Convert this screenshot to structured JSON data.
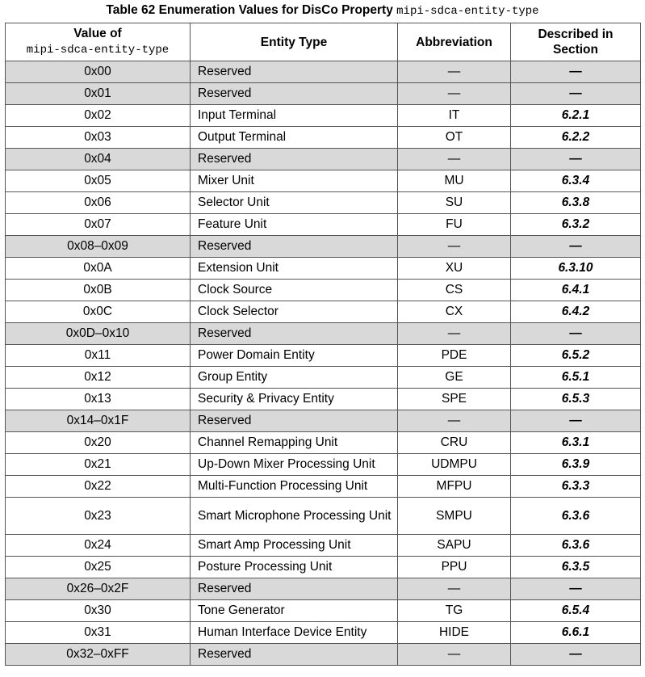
{
  "caption": {
    "text": "Table 62 Enumeration Values for DisCo Property",
    "property": "mipi-sdca-entity-type"
  },
  "headers": {
    "value_line1": "Value of",
    "value_line2": "mipi-sdca-entity-type",
    "entity_type": "Entity Type",
    "abbreviation": "Abbreviation",
    "described_line1": "Described in",
    "described_line2": "Section"
  },
  "rows": [
    {
      "value": "0x00",
      "type": "Reserved",
      "abbr": "—",
      "section": "—",
      "reserved": true
    },
    {
      "value": "0x01",
      "type": "Reserved",
      "abbr": "—",
      "section": "—",
      "reserved": true
    },
    {
      "value": "0x02",
      "type": "Input Terminal",
      "abbr": "IT",
      "section": "6.2.1",
      "reserved": false
    },
    {
      "value": "0x03",
      "type": "Output Terminal",
      "abbr": "OT",
      "section": "6.2.2",
      "reserved": false
    },
    {
      "value": "0x04",
      "type": "Reserved",
      "abbr": "—",
      "section": "—",
      "reserved": true
    },
    {
      "value": "0x05",
      "type": "Mixer Unit",
      "abbr": "MU",
      "section": "6.3.4",
      "reserved": false
    },
    {
      "value": "0x06",
      "type": "Selector Unit",
      "abbr": "SU",
      "section": "6.3.8",
      "reserved": false
    },
    {
      "value": "0x07",
      "type": "Feature Unit",
      "abbr": "FU",
      "section": "6.3.2",
      "reserved": false
    },
    {
      "value": "0x08–0x09",
      "type": "Reserved",
      "abbr": "—",
      "section": "—",
      "reserved": true
    },
    {
      "value": "0x0A",
      "type": "Extension Unit",
      "abbr": "XU",
      "section": "6.3.10",
      "reserved": false
    },
    {
      "value": "0x0B",
      "type": "Clock Source",
      "abbr": "CS",
      "section": "6.4.1",
      "reserved": false
    },
    {
      "value": "0x0C",
      "type": "Clock Selector",
      "abbr": "CX",
      "section": "6.4.2",
      "reserved": false
    },
    {
      "value": "0x0D–0x10",
      "type": "Reserved",
      "abbr": "—",
      "section": "—",
      "reserved": true
    },
    {
      "value": "0x11",
      "type": "Power Domain Entity",
      "abbr": "PDE",
      "section": "6.5.2",
      "reserved": false
    },
    {
      "value": "0x12",
      "type": "Group Entity",
      "abbr": "GE",
      "section": "6.5.1",
      "reserved": false
    },
    {
      "value": "0x13",
      "type": "Security & Privacy Entity",
      "abbr": "SPE",
      "section": "6.5.3",
      "reserved": false
    },
    {
      "value": "0x14–0x1F",
      "type": "Reserved",
      "abbr": "—",
      "section": "—",
      "reserved": true
    },
    {
      "value": "0x20",
      "type": "Channel Remapping Unit",
      "abbr": "CRU",
      "section": "6.3.1",
      "reserved": false
    },
    {
      "value": "0x21",
      "type": "Up-Down Mixer Processing Unit",
      "abbr": "UDMPU",
      "section": "6.3.9",
      "reserved": false
    },
    {
      "value": "0x22",
      "type": "Multi-Function Processing Unit",
      "abbr": "MFPU",
      "section": "6.3.3",
      "reserved": false
    },
    {
      "value": "0x23",
      "type": "Smart Microphone Processing Unit",
      "abbr": "SMPU",
      "section": "6.3.6",
      "reserved": false,
      "tall": true
    },
    {
      "value": "0x24",
      "type": "Smart Amp Processing Unit",
      "abbr": "SAPU",
      "section": "6.3.6",
      "reserved": false
    },
    {
      "value": "0x25",
      "type": "Posture Processing Unit",
      "abbr": "PPU",
      "section": "6.3.5",
      "reserved": false
    },
    {
      "value": "0x26–0x2F",
      "type": "Reserved",
      "abbr": "—",
      "section": "—",
      "reserved": true
    },
    {
      "value": "0x30",
      "type": "Tone Generator",
      "abbr": "TG",
      "section": "6.5.4",
      "reserved": false
    },
    {
      "value": "0x31",
      "type": "Human Interface Device Entity",
      "abbr": "HIDE",
      "section": "6.6.1",
      "reserved": false
    },
    {
      "value": "0x32–0xFF",
      "type": "Reserved",
      "abbr": "—",
      "section": "—",
      "reserved": true
    }
  ],
  "colors": {
    "reserved_row_bg": "#d9d9d9",
    "border": "#555555",
    "text": "#000000"
  }
}
